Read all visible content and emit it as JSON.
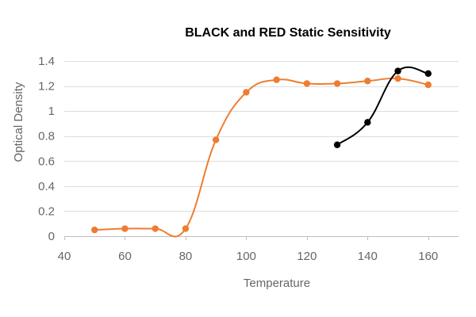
{
  "chart_data": {
    "type": "line",
    "title": "BLACK and RED Static Sensitivity",
    "xlabel": "Temperature",
    "ylabel": "Optical Density",
    "xlim": [
      40,
      170
    ],
    "ylim": [
      0,
      1.4
    ],
    "x_ticks": [
      40,
      60,
      80,
      100,
      120,
      140,
      160
    ],
    "y_ticks": [
      0,
      0.2,
      0.4,
      0.6,
      0.8,
      1,
      1.2,
      1.4
    ],
    "x_tick_labels": [
      "40",
      "60",
      "80",
      "100",
      "120",
      "140",
      "160"
    ],
    "y_tick_labels": [
      "0",
      "0.2",
      "0.4",
      "0.6",
      "0.8",
      "1",
      "1.2",
      "1.4"
    ],
    "grid": true,
    "legend": "none",
    "series": [
      {
        "name": "Red",
        "color": "#ED7D31",
        "x": [
          50,
          60,
          70,
          80,
          90,
          100,
          110,
          120,
          130,
          140,
          150,
          160
        ],
        "values": [
          0.05,
          0.06,
          0.06,
          0.06,
          0.77,
          1.15,
          1.25,
          1.22,
          1.22,
          1.24,
          1.26,
          1.21
        ]
      },
      {
        "name": "Black",
        "color": "#000000",
        "x": [
          130,
          140,
          150,
          160
        ],
        "values": [
          0.73,
          0.91,
          1.32,
          1.3
        ]
      }
    ]
  }
}
